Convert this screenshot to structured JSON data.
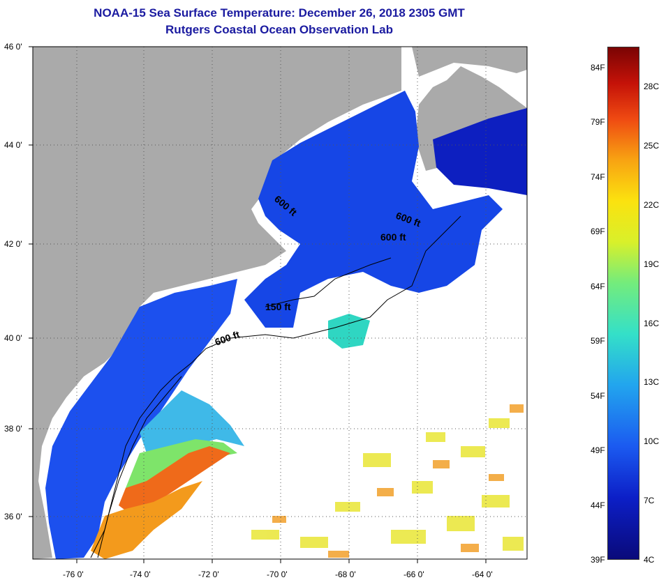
{
  "title": "NOAA-15 Sea Surface Temperature:  December 26, 2018 2305 GMT",
  "subtitle": "Rutgers Coastal Ocean Observation Lab",
  "lat_labels": [
    "46 0'",
    "44 0'",
    "42 0'",
    "40 0'",
    "38 0'",
    "36 0'"
  ],
  "lon_labels": [
    "-76 0'",
    "-74 0'",
    "-72 0'",
    "-70 0'",
    "-68 0'",
    "-66 0'",
    "-64 0'"
  ],
  "contour_labels": [
    "600 ft",
    "600 ft",
    "600 ft",
    "150 ft",
    "600 ft"
  ],
  "colorbar": {
    "fahrenheit": [
      "84F",
      "79F",
      "74F",
      "69F",
      "64F",
      "59F",
      "54F",
      "49F",
      "44F",
      "39F"
    ],
    "celsius": [
      "28C",
      "25C",
      "22C",
      "19C",
      "16C",
      "13C",
      "10C",
      "7C",
      "4C"
    ]
  },
  "colors": {
    "land": "#aaaaaa",
    "cloud": "#ffffff",
    "title": "#1a1aa0"
  }
}
